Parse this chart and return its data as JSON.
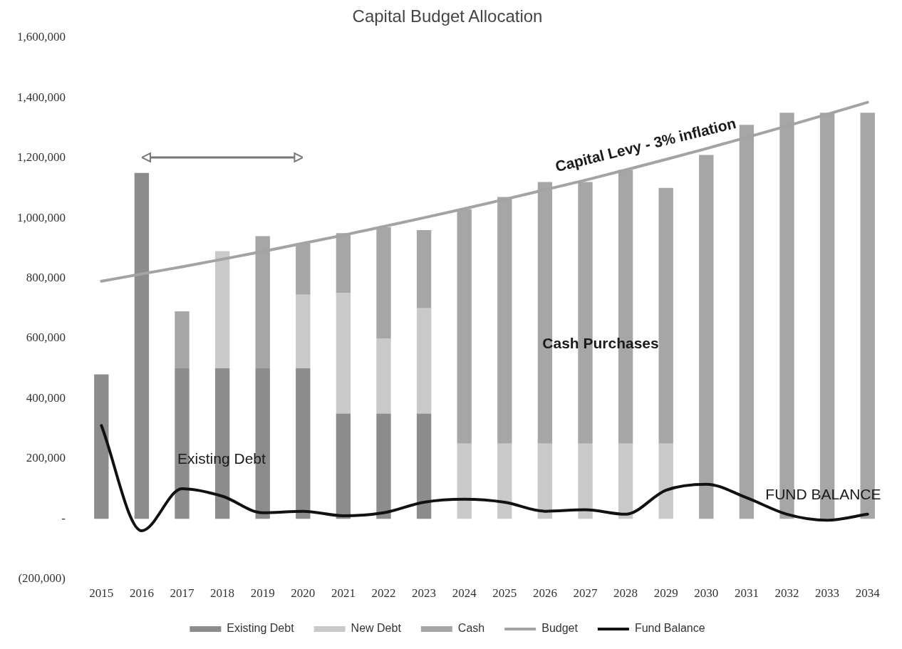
{
  "chart_data": {
    "type": "bar",
    "title": "Capital Budget Allocation",
    "categories": [
      "2015",
      "2016",
      "2017",
      "2018",
      "2019",
      "2020",
      "2021",
      "2022",
      "2023",
      "2024",
      "2025",
      "2026",
      "2027",
      "2028",
      "2029",
      "2030",
      "2031",
      "2032",
      "2033",
      "2034"
    ],
    "series": [
      {
        "name": "Existing Debt",
        "color": "#8c8c8c",
        "values": [
          480000,
          1150000,
          500000,
          500000,
          500000,
          500000,
          350000,
          350000,
          350000,
          0,
          0,
          0,
          0,
          0,
          0,
          0,
          0,
          0,
          0,
          0
        ]
      },
      {
        "name": "New Debt",
        "color": "#c9c9c9",
        "values": [
          0,
          0,
          0,
          390000,
          0,
          245000,
          400000,
          250000,
          350000,
          250000,
          250000,
          250000,
          250000,
          250000,
          250000,
          0,
          0,
          0,
          0,
          0
        ]
      },
      {
        "name": "Cash",
        "color": "#a6a6a6",
        "values": [
          0,
          0,
          190000,
          0,
          440000,
          170000,
          200000,
          370000,
          260000,
          780000,
          820000,
          870000,
          870000,
          910000,
          850000,
          1210000,
          1310000,
          1350000,
          1350000,
          1350000
        ]
      },
      {
        "name": "Budget",
        "type": "line",
        "color": "#a3a3a3",
        "values": [
          790000,
          814000,
          838000,
          863000,
          889000,
          916000,
          943000,
          972000,
          1001000,
          1031000,
          1062000,
          1094000,
          1126000,
          1160000,
          1195000,
          1231000,
          1268000,
          1306000,
          1345000,
          1385000
        ]
      },
      {
        "name": "Fund Balance",
        "type": "line",
        "color": "#111111",
        "values": [
          310000,
          -40000,
          100000,
          75000,
          20000,
          25000,
          10000,
          20000,
          55000,
          65000,
          55000,
          25000,
          30000,
          15000,
          95000,
          115000,
          70000,
          15000,
          -5000,
          15000
        ]
      }
    ],
    "stacked": true,
    "ylim": [
      -200000,
      1600000
    ],
    "yticks": [
      {
        "value": -200000,
        "label": "(200,000)"
      },
      {
        "value": 0,
        "label": "-"
      },
      {
        "value": 200000,
        "label": "200,000"
      },
      {
        "value": 400000,
        "label": "400,000"
      },
      {
        "value": 600000,
        "label": "600,000"
      },
      {
        "value": 800000,
        "label": "800,000"
      },
      {
        "value": 1000000,
        "label": "1,000,000"
      },
      {
        "value": 1200000,
        "label": "1,200,000"
      },
      {
        "value": 1400000,
        "label": "1,400,000"
      },
      {
        "value": 1600000,
        "label": "1,600,000"
      }
    ],
    "legend": "bottom",
    "annotations": [
      "Capital Levy - 3% inflation",
      "Cash Purchases",
      "Existing Debt",
      "FUND BALANCE"
    ]
  }
}
